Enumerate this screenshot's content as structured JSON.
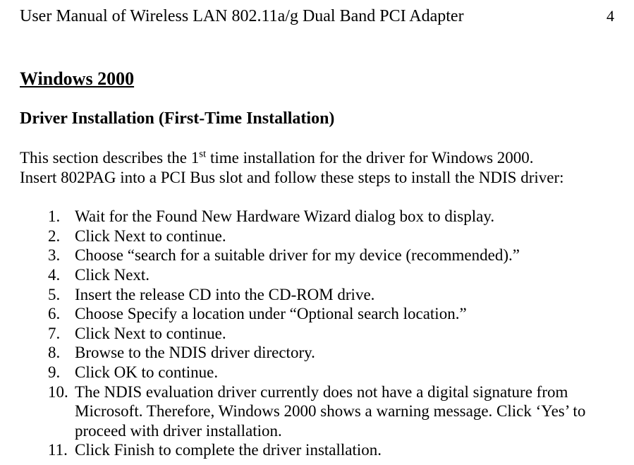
{
  "document": {
    "header": "User Manual of Wireless LAN 802.11a/g Dual Band PCI Adapter",
    "page_number": "4",
    "section_title": "Windows 2000",
    "subsection_title": "Driver Installation (First-Time Installation)",
    "intro_line1_prefix": "This section describes the 1",
    "intro_line1_sup": "st",
    "intro_line1_suffix": " time installation for the driver for Windows 2000.",
    "intro_line2": "Insert 802PAG into a PCI Bus slot and follow these steps to install the NDIS driver:",
    "steps": [
      {
        "num": "1.",
        "text": "Wait for the Found New Hardware Wizard dialog box to display."
      },
      {
        "num": "2.",
        "text": "Click Next to continue."
      },
      {
        "num": "3.",
        "text": "Choose “search for a suitable driver for my device (recommended).”"
      },
      {
        "num": "4.",
        "text": "Click Next."
      },
      {
        "num": "5.",
        "text": "Insert the release CD into the CD-ROM drive."
      },
      {
        "num": "6.",
        "text": "Choose Specify a location under “Optional search location.”"
      },
      {
        "num": "7.",
        "text": "Click Next to continue."
      },
      {
        "num": "8.",
        "text": "Browse to the NDIS driver directory."
      },
      {
        "num": "9.",
        "text": "Click OK to continue."
      },
      {
        "num": "10.",
        "text": "The NDIS evaluation driver currently does not have a digital signature from Microsoft. Therefore, Windows 2000 shows a warning message. Click ‘Yes’ to proceed with driver installation."
      },
      {
        "num": "11.",
        "text": "Click Finish to complete the driver installation."
      }
    ]
  },
  "style": {
    "background_color": "#ffffff",
    "text_color": "#000000",
    "font_family": "Times New Roman",
    "header_fontsize": 24,
    "section_title_fontsize": 26,
    "subsection_fontsize": 24,
    "body_fontsize": 23
  }
}
